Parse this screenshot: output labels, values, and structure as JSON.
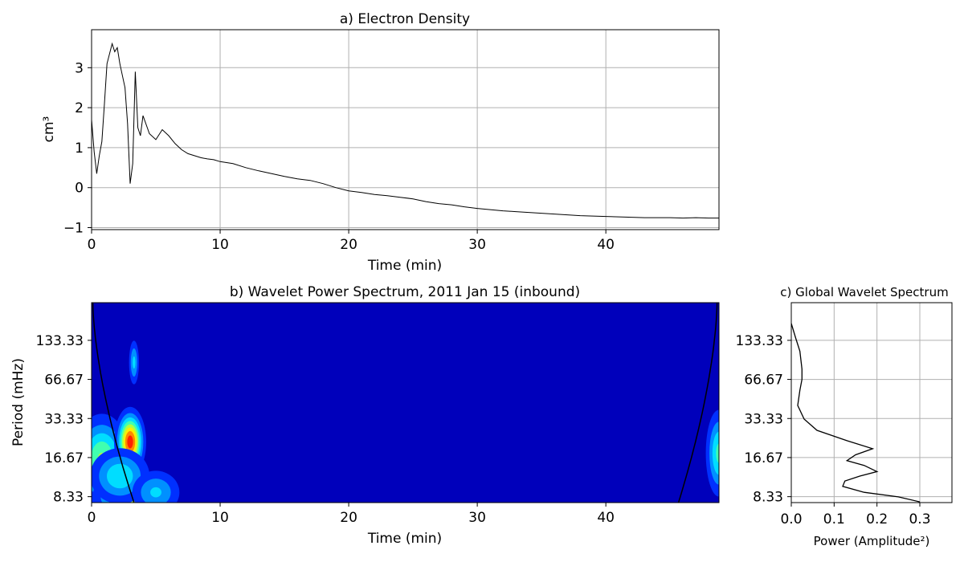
{
  "chart_data": [
    {
      "type": "line",
      "title": "a) Electron Density",
      "xlabel": "Time (min)",
      "ylabel": "cm³",
      "xlim": [
        0,
        48.8
      ],
      "ylim": [
        -1.05,
        3.95
      ],
      "xticks": [
        0,
        10,
        20,
        30,
        40
      ],
      "yticks": [
        -1,
        0,
        1,
        2,
        3
      ],
      "grid": true,
      "line_color": "#000000",
      "points": [
        [
          0,
          1.7
        ],
        [
          0.2,
          0.9
        ],
        [
          0.4,
          0.35
        ],
        [
          0.6,
          0.8
        ],
        [
          0.8,
          1.15
        ],
        [
          1.0,
          2.1
        ],
        [
          1.2,
          3.1
        ],
        [
          1.4,
          3.35
        ],
        [
          1.6,
          3.6
        ],
        [
          1.8,
          3.4
        ],
        [
          2.0,
          3.5
        ],
        [
          2.2,
          3.1
        ],
        [
          2.4,
          2.8
        ],
        [
          2.6,
          2.5
        ],
        [
          2.8,
          1.6
        ],
        [
          3.0,
          0.1
        ],
        [
          3.2,
          0.6
        ],
        [
          3.4,
          2.9
        ],
        [
          3.6,
          1.5
        ],
        [
          3.8,
          1.3
        ],
        [
          4.0,
          1.8
        ],
        [
          4.5,
          1.35
        ],
        [
          5.0,
          1.2
        ],
        [
          5.5,
          1.45
        ],
        [
          6.0,
          1.3
        ],
        [
          6.5,
          1.1
        ],
        [
          7.0,
          0.95
        ],
        [
          7.5,
          0.85
        ],
        [
          8.0,
          0.8
        ],
        [
          8.5,
          0.75
        ],
        [
          9.0,
          0.72
        ],
        [
          9.5,
          0.7
        ],
        [
          10.0,
          0.65
        ],
        [
          11.0,
          0.6
        ],
        [
          12.0,
          0.5
        ],
        [
          13.0,
          0.42
        ],
        [
          14.0,
          0.35
        ],
        [
          15.0,
          0.28
        ],
        [
          16.0,
          0.22
        ],
        [
          17.0,
          0.18
        ],
        [
          18.0,
          0.1
        ],
        [
          19.0,
          0.0
        ],
        [
          20.0,
          -0.08
        ],
        [
          21.0,
          -0.12
        ],
        [
          22.0,
          -0.17
        ],
        [
          23.0,
          -0.2
        ],
        [
          24.0,
          -0.24
        ],
        [
          25.0,
          -0.28
        ],
        [
          26.0,
          -0.35
        ],
        [
          27.0,
          -0.4
        ],
        [
          28.0,
          -0.43
        ],
        [
          29.0,
          -0.48
        ],
        [
          30.0,
          -0.52
        ],
        [
          31.0,
          -0.55
        ],
        [
          32.0,
          -0.58
        ],
        [
          33.0,
          -0.6
        ],
        [
          34.0,
          -0.62
        ],
        [
          35.0,
          -0.64
        ],
        [
          36.0,
          -0.66
        ],
        [
          37.0,
          -0.68
        ],
        [
          38.0,
          -0.7
        ],
        [
          39.0,
          -0.71
        ],
        [
          40.0,
          -0.72
        ],
        [
          41.0,
          -0.73
        ],
        [
          42.0,
          -0.74
        ],
        [
          43.0,
          -0.75
        ],
        [
          44.0,
          -0.75
        ],
        [
          45.0,
          -0.75
        ],
        [
          46.0,
          -0.76
        ],
        [
          47.0,
          -0.75
        ],
        [
          48.0,
          -0.76
        ],
        [
          48.8,
          -0.76
        ]
      ]
    },
    {
      "type": "heatmap",
      "title": "b) Wavelet Power Spectrum, 2011 Jan 15 (inbound)",
      "xlabel": "Time (min)",
      "ylabel": "Period (mHz)",
      "xlim": [
        0,
        48.8
      ],
      "ylim": [
        7.5,
        260
      ],
      "yscale": "log",
      "xticks": [
        0,
        10,
        20,
        30,
        40
      ],
      "yticks": [
        8.33,
        16.67,
        33.33,
        66.67,
        133.33
      ],
      "yticklabels": [
        "8.33",
        "16.67",
        "33.33",
        "66.67",
        "133.33"
      ],
      "background_color": "#0000bb",
      "level_colors": [
        "#0000bb",
        "#0030ff",
        "#0090ff",
        "#00ddff",
        "#40ffb0",
        "#b0ff40",
        "#ffee00",
        "#ff8800",
        "#ff2200",
        "#cc0000"
      ],
      "blobs": [
        {
          "x": 0.8,
          "y": 16,
          "sx": 1.2,
          "sy": 0.45,
          "amp": 5.2
        },
        {
          "x": 3.0,
          "y": 22,
          "sx": 0.6,
          "sy": 0.3,
          "amp": 8.6
        },
        {
          "x": 3.3,
          "y": 90,
          "sx": 0.25,
          "sy": 0.25,
          "amp": 3.3
        },
        {
          "x": 3.0,
          "y": 8.5,
          "sx": 1.5,
          "sy": 0.25,
          "amp": 6.5
        },
        {
          "x": 2.2,
          "y": 12,
          "sx": 1.4,
          "sy": 0.3,
          "amp": 3.9
        },
        {
          "x": 5.0,
          "y": 9.0,
          "sx": 1.2,
          "sy": 0.25,
          "amp": 3.2
        },
        {
          "x": 48.8,
          "y": 18,
          "sx": 0.6,
          "sy": 0.45,
          "amp": 4.3
        }
      ],
      "cone_of_influence": true
    },
    {
      "type": "line",
      "title": "c) Global Wavelet Spectrum",
      "xlabel": "Power (Amplitude²)",
      "ylabel": "",
      "xlim": [
        0,
        0.375
      ],
      "ylim": [
        7.5,
        260
      ],
      "yscale": "log",
      "xticks": [
        0.0,
        0.1,
        0.2,
        0.3
      ],
      "xticklabels": [
        "0.0",
        "0.1",
        "0.2",
        "0.3"
      ],
      "yticks": [
        8.33,
        16.67,
        33.33,
        66.67,
        133.33
      ],
      "yticklabels": [
        "8.33",
        "16.67",
        "33.33",
        "66.67",
        "133.33"
      ],
      "grid": true,
      "line_color": "#000000",
      "points": [
        [
          0.3,
          7.6
        ],
        [
          0.25,
          8.3
        ],
        [
          0.17,
          9.0
        ],
        [
          0.12,
          10.0
        ],
        [
          0.125,
          11.0
        ],
        [
          0.16,
          12.0
        ],
        [
          0.2,
          13.0
        ],
        [
          0.17,
          14.5
        ],
        [
          0.13,
          15.8
        ],
        [
          0.15,
          17.5
        ],
        [
          0.19,
          19.5
        ],
        [
          0.13,
          22.5
        ],
        [
          0.06,
          27.0
        ],
        [
          0.03,
          33.0
        ],
        [
          0.015,
          42.0
        ],
        [
          0.02,
          55.0
        ],
        [
          0.025,
          66.7
        ],
        [
          0.025,
          80.0
        ],
        [
          0.02,
          110.0
        ],
        [
          0.01,
          140.0
        ],
        [
          0.0,
          180.0
        ]
      ]
    }
  ]
}
